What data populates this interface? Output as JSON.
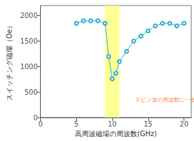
{
  "chart_data": {
    "type": "line",
    "x": [
      5,
      6,
      7,
      8,
      9,
      9.5,
      10,
      10.5,
      11,
      12,
      13,
      14,
      15,
      16,
      17,
      18,
      19,
      20
    ],
    "values": [
      1850,
      1900,
      1900,
      1900,
      1850,
      1200,
      760,
      870,
      1100,
      1300,
      1500,
      1600,
      1700,
      1800,
      1850,
      1850,
      1800,
      1850
    ],
    "color": "#29ABD4",
    "marker": "circle",
    "xlabel": "高周波磁場の周波数(GHz)",
    "ylabel": "スイッチング磁場（Oe）",
    "annotations": [
      {
        "text": "スピン波の周波数に一致",
        "x": 13.0,
        "y": 350,
        "color": "#FF6600"
      }
    ],
    "spans": [
      {
        "x": [
          9.0,
          11.0
        ],
        "color": "#FFFF80"
      }
    ],
    "xlim": [
      0,
      21
    ],
    "ylim": [
      0,
      2200
    ],
    "xticks": [
      0,
      5,
      10,
      15,
      20
    ],
    "yticks": [
      0,
      500,
      1000,
      1500,
      2000
    ],
    "grid": false
  }
}
